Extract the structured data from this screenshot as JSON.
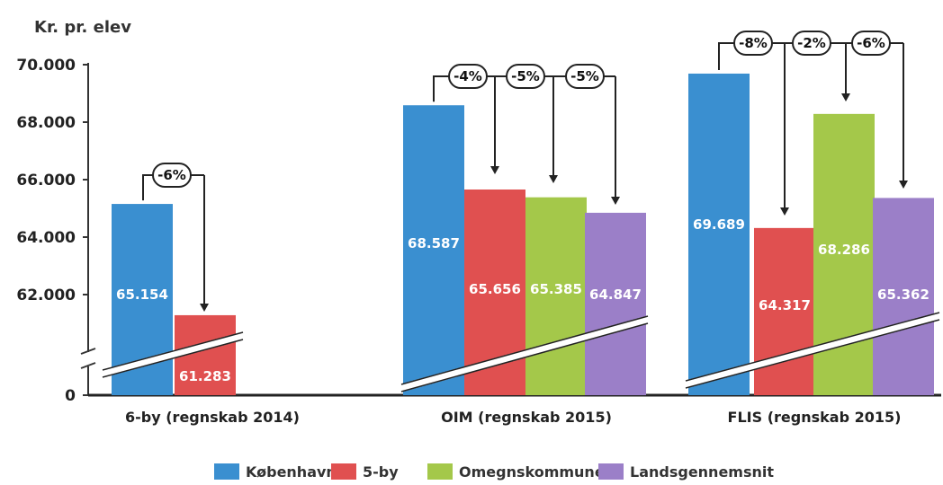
{
  "chart_data": {
    "type": "bar",
    "ylabel": "Kr. pr. elev",
    "y_ticks": [
      "70.000",
      "68.000",
      "66.000",
      "64.000",
      "62.000",
      "0"
    ],
    "ylim": [
      60000,
      70000
    ],
    "axis_break": true,
    "legend_position": "bottom",
    "series": [
      {
        "name": "København",
        "color": "#3a8fd0"
      },
      {
        "name": "5-by",
        "color": "#e05050"
      },
      {
        "name": "Omegnskommuner",
        "color": "#a4c84a"
      },
      {
        "name": "Landsgennemsnit",
        "color": "#9b7fc8"
      }
    ],
    "groups": [
      {
        "category": "6-by (regnskab 2014)",
        "bars": [
          {
            "series": 0,
            "value": 65154,
            "label": "65.154"
          },
          {
            "series": 1,
            "value": 61283,
            "label": "61.283"
          }
        ],
        "comparisons": [
          {
            "from": 0,
            "to": 1,
            "label": "-6%"
          }
        ]
      },
      {
        "category": "OIM (regnskab 2015)",
        "bars": [
          {
            "series": 0,
            "value": 68587,
            "label": "68.587"
          },
          {
            "series": 1,
            "value": 65656,
            "label": "65.656"
          },
          {
            "series": 2,
            "value": 65385,
            "label": "65.385"
          },
          {
            "series": 3,
            "value": 64847,
            "label": "64.847"
          }
        ],
        "comparisons": [
          {
            "from": 0,
            "to": 1,
            "label": "-4%"
          },
          {
            "from": 0,
            "to": 2,
            "label": "-5%"
          },
          {
            "from": 0,
            "to": 3,
            "label": "-5%"
          }
        ]
      },
      {
        "category": "FLIS (regnskab 2015)",
        "bars": [
          {
            "series": 0,
            "value": 69689,
            "label": "69.689"
          },
          {
            "series": 1,
            "value": 64317,
            "label": "64.317"
          },
          {
            "series": 2,
            "value": 68286,
            "label": "68.286"
          },
          {
            "series": 3,
            "value": 65362,
            "label": "65.362"
          }
        ],
        "comparisons": [
          {
            "from": 0,
            "to": 1,
            "label": "-8%"
          },
          {
            "from": 0,
            "to": 2,
            "label": "-2%"
          },
          {
            "from": 0,
            "to": 3,
            "label": "-6%"
          }
        ]
      }
    ]
  }
}
